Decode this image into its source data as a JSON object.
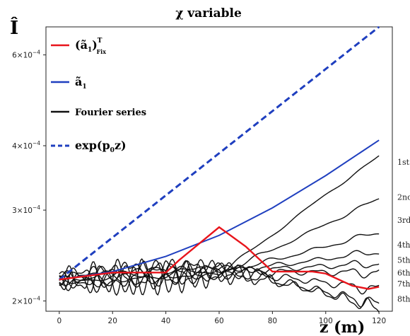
{
  "chart_data": {
    "type": "line",
    "title": "χ variable",
    "xlabel": "z (m)",
    "ylabel": "Î",
    "xlim": [
      -5,
      125
    ],
    "ylim": [
      0.000191,
      0.00068
    ],
    "y_scale": "log",
    "x_ticks": [
      "0",
      "20",
      "40",
      "60",
      "80",
      "100",
      "120"
    ],
    "y_ticks": [
      {
        "value": 0.0002,
        "base": "2×10",
        "exp": "−4"
      },
      {
        "value": 0.0003,
        "base": "3×10",
        "exp": "−4"
      },
      {
        "value": 0.0004,
        "base": "4×10",
        "exp": "−4"
      },
      {
        "value": 0.0006,
        "base": "6×10",
        "exp": "−4"
      }
    ],
    "legend_position": "top-left",
    "legend": [
      {
        "label_main": "(ã",
        "label_sub": "1",
        "label_close": ")",
        "label_sup": "T",
        "label_sub2": "Fix",
        "color": "#e8141b",
        "dash": "solid"
      },
      {
        "label_main": "ã",
        "label_sub": "1",
        "color": "#1f3fbf",
        "dash": "solid"
      },
      {
        "label_main": "Fourier series",
        "color": "#111111",
        "dash": "solid"
      },
      {
        "label_main": "exp(p",
        "label_sub": "0",
        "label_close": "z)",
        "color": "#1f3fbf",
        "dash": "dashed"
      }
    ],
    "series": [
      {
        "key": "exp",
        "color": "#1f3fbf",
        "dash": "dashed",
        "width": 3,
        "x": [
          0,
          120
        ],
        "y": [
          0.00022,
          0.00068
        ]
      },
      {
        "key": "a1",
        "color": "#1f3fbf",
        "dash": "solid",
        "width": 2,
        "x": [
          0,
          20,
          40,
          60,
          80,
          100,
          120
        ],
        "y": [
          0.00022,
          0.000228,
          0.000244,
          0.000268,
          0.000303,
          0.00035,
          0.00041
        ]
      },
      {
        "key": "a1fix",
        "color": "#e8141b",
        "dash": "solid",
        "width": 2.4,
        "x": [
          0,
          20,
          40,
          45,
          60,
          70,
          80,
          95,
          100,
          110,
          116,
          120
        ],
        "y": [
          0.00022,
          0.000227,
          0.000227,
          0.00024,
          0.000278,
          0.000255,
          0.000228,
          0.000228,
          0.000226,
          0.000214,
          0.000211,
          0.000213
        ]
      }
    ],
    "fourier_series": {
      "color": "#111111",
      "endpoints_y": [
        0.00038,
        0.000315,
        0.000272,
        0.00025,
        0.000237,
        0.000227,
        0.00021,
        0.000196,
        0.000193
      ],
      "order_labels": [
        "1st",
        "2nd",
        "3rd",
        "4th",
        "5th",
        "6th",
        "7th",
        "8th"
      ],
      "order_label_y": [
        0.000372,
        0.000318,
        0.000287,
        0.000257,
        0.00024,
        0.000227,
        0.000216,
        0.000202
      ]
    }
  }
}
